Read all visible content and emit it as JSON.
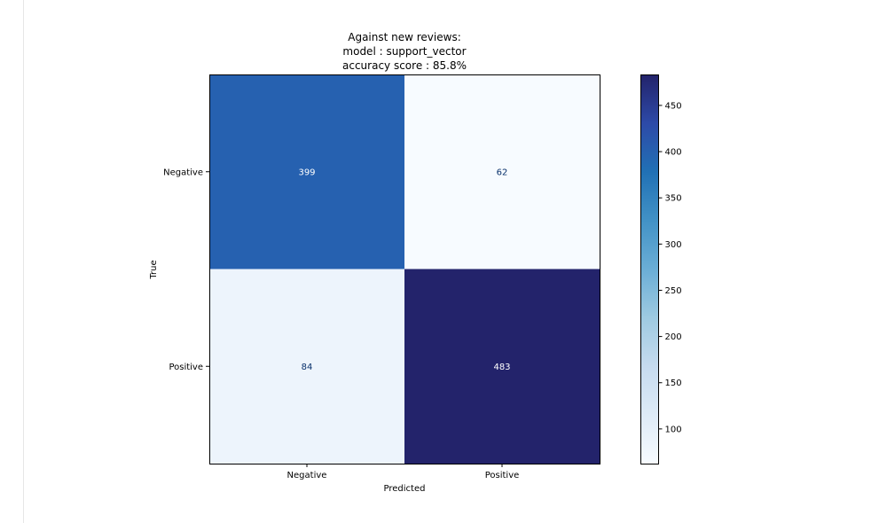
{
  "chart_data": {
    "type": "heatmap",
    "title_lines": [
      "Against new reviews:",
      "model : support_vector",
      "accuracy score : 85.8%"
    ],
    "xlabel": "Predicted",
    "ylabel": "True",
    "x_categories": [
      "Negative",
      "Positive"
    ],
    "y_categories": [
      "Negative",
      "Positive"
    ],
    "matrix": [
      [
        399,
        62
      ],
      [
        84,
        483
      ]
    ],
    "colormap": "Blues",
    "colorbar": {
      "min": 62,
      "max": 483,
      "ticks": [
        100,
        150,
        200,
        250,
        300,
        350,
        400,
        450
      ]
    },
    "grid": false
  }
}
